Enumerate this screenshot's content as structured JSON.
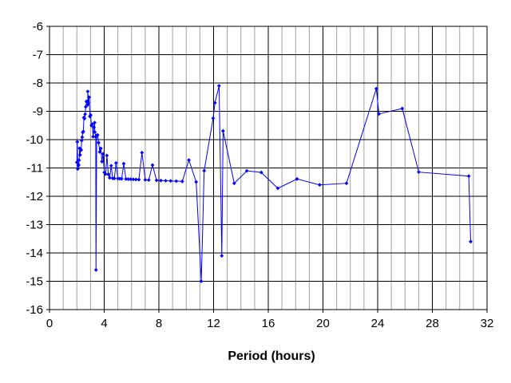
{
  "chart_data": {
    "type": "line",
    "title": "",
    "xlabel": "Period (hours)",
    "ylabel": "",
    "xlim": [
      0,
      32
    ],
    "ylim": [
      -16,
      -6
    ],
    "x_major_ticks": [
      0,
      4,
      8,
      12,
      16,
      20,
      24,
      28,
      32
    ],
    "x_tick_labels": [
      "0",
      "4",
      "8",
      "12",
      "16",
      "20",
      "24",
      "28",
      "32"
    ],
    "y_ticks": [
      -6,
      -7,
      -8,
      -9,
      -10,
      -11,
      -12,
      -13,
      -14,
      -15,
      -16
    ],
    "y_tick_labels": [
      "-6",
      "-7",
      "-8",
      "-9",
      "-10",
      "-11",
      "-12",
      "-13",
      "-14",
      "-15",
      "-16"
    ],
    "x_minor_step": 1,
    "grid": true,
    "legend": "none",
    "colors": {
      "series": "#0000ff",
      "grid_major": "#000000",
      "grid_minor": "#a0a0a0",
      "plot_background": "#ffffff"
    },
    "series": [
      {
        "marker": "diamond",
        "x_range": [
          2,
          31.9
        ],
        "baseline": [
          [
            2,
            -11.3
          ],
          [
            6,
            -11.4
          ],
          [
            11,
            -11.5
          ],
          [
            12.4,
            -11.5
          ],
          [
            16,
            -11.7
          ],
          [
            20,
            -11.8
          ],
          [
            22,
            -11.5
          ],
          [
            24,
            -11.0
          ],
          [
            28,
            -11.2
          ],
          [
            32,
            -11.5
          ]
        ],
        "noise_amplitude": [
          [
            2,
            1.6
          ],
          [
            4,
            1.3
          ],
          [
            8,
            1.0
          ],
          [
            12,
            0.8
          ],
          [
            16,
            0.6
          ],
          [
            24,
            0.6
          ],
          [
            32,
            0.4
          ]
        ],
        "peaks": [
          {
            "x": 2.8,
            "y": -8.3
          },
          {
            "x": 3.3,
            "y": -9.4
          },
          {
            "x": 12.1,
            "y": -8.7
          },
          {
            "x": 12.4,
            "y": -8.1
          },
          {
            "x": 23.9,
            "y": -8.2
          },
          {
            "x": 25.8,
            "y": -8.9
          }
        ],
        "troughs": [
          {
            "x": 3.4,
            "y": -14.6
          },
          {
            "x": 11.1,
            "y": -15.0
          },
          {
            "x": 12.6,
            "y": -14.1
          },
          {
            "x": 30.8,
            "y": -13.6
          }
        ]
      }
    ]
  }
}
